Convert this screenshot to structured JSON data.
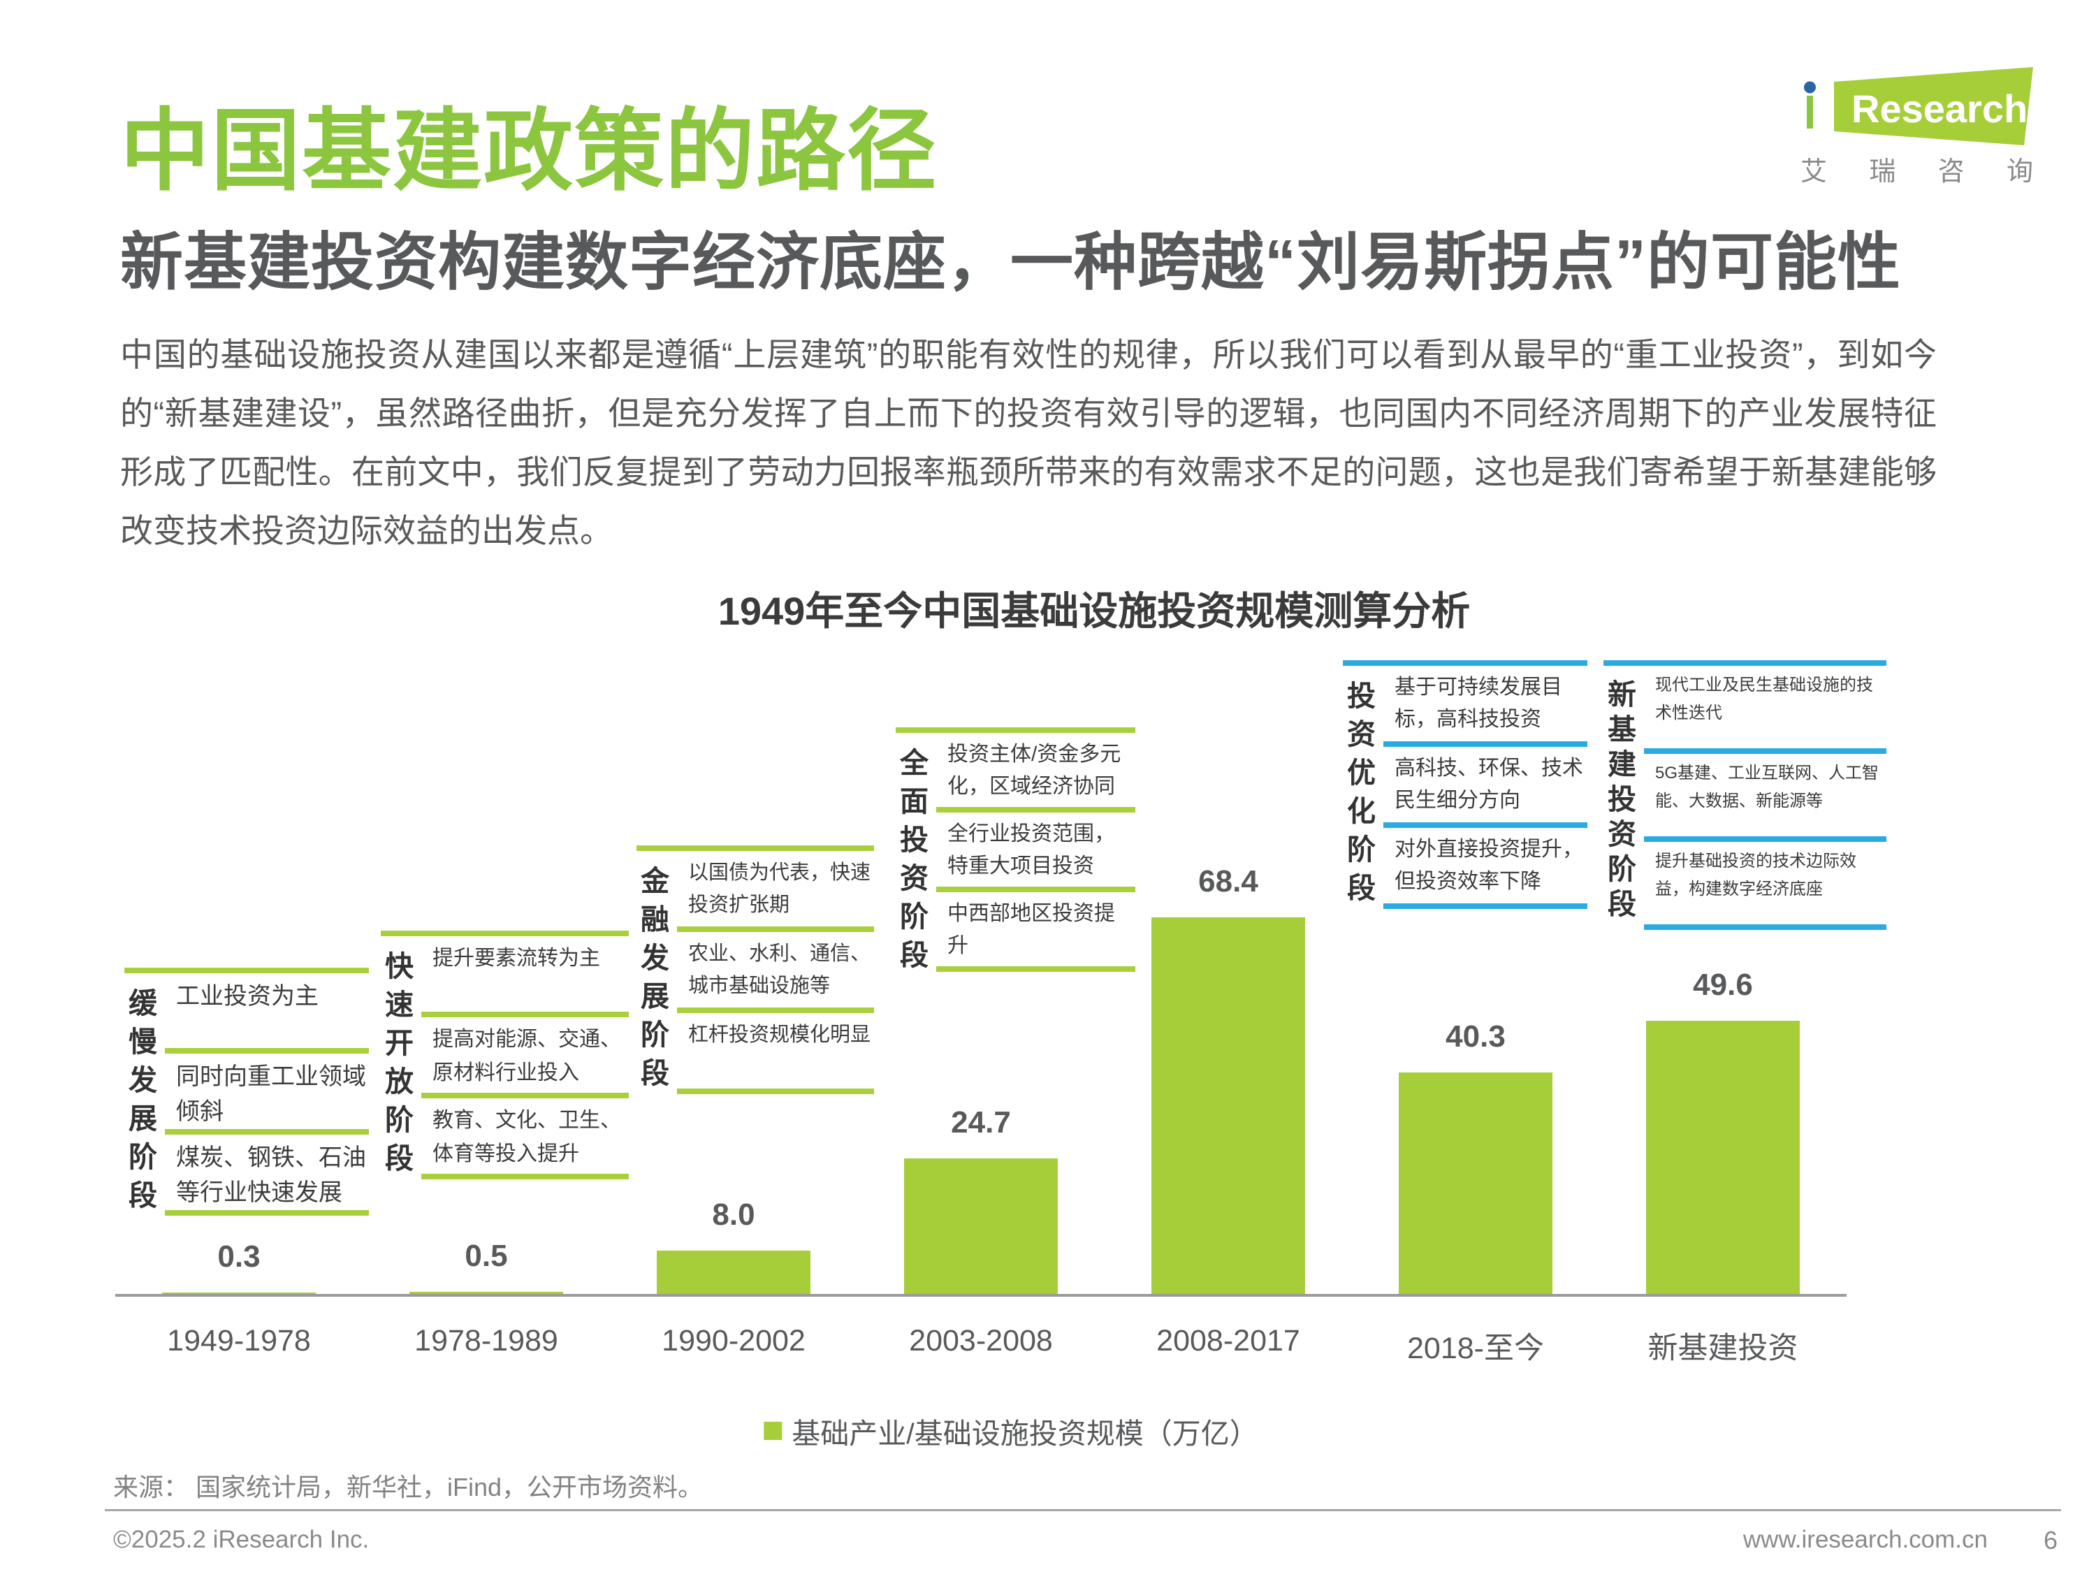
{
  "header": {
    "title": "中国基建政策的路径",
    "subtitle": "新基建投资构建数字经济底座，一种跨越“刘易斯拐点”的可能性"
  },
  "logo": {
    "brand": "iResearch",
    "cn": [
      "艾",
      "瑞",
      "咨",
      "询"
    ]
  },
  "intro": "中国的基础设施投资从建国以来都是遵循“上层建筑”的职能有效性的规律，所以我们可以看到从最早的“重工业投资”，到如今的“新基建建设”，虽然路径曲折，但是充分发挥了自上而下的投资有效引导的逻辑，也同国内不同经济周期下的产业发展特征形成了匹配性。在前文中，我们反复提到了劳动力回报率瓶颈所带来的有效需求不足的问题，这也是我们寄希望于新基建能够改变技术投资边际效益的出发点。",
  "chart_data": {
    "type": "bar",
    "title": "1949年至今中国基础设施投资规模测算分析",
    "categories": [
      "1949-1978",
      "1978-1989",
      "1990-2002",
      "2003-2008",
      "2008-2017",
      "2018-至今",
      "新基建投资"
    ],
    "values": [
      0.3,
      0.5,
      8.0,
      24.7,
      68.4,
      40.3,
      49.6
    ],
    "ylim": [
      0,
      75
    ],
    "grid": false,
    "legend_position": "bottom",
    "legend": "基础产业/基础设施投资规模（万亿）",
    "bar_color": "#A6CE39",
    "line_green": "#A9CF3B",
    "line_blue": "#29ABE2",
    "stages": [
      {
        "label": "缓慢发展阶段",
        "color": "green",
        "items": [
          "工业投资为主",
          "同时向重工业领域倾斜",
          "煤炭、钢铁、石油等行业快速发展"
        ]
      },
      {
        "label": "快速开放阶段",
        "color": "green",
        "items": [
          "提升要素流转为主",
          "提高对能源、交通、原材料行业投入",
          "教育、文化、卫生、体育等投入提升"
        ]
      },
      {
        "label": "金融发展阶段",
        "color": "green",
        "items": [
          "以国债为代表，快速投资扩张期",
          "农业、水利、通信、城市基础设施等",
          "杠杆投资规模化明显"
        ]
      },
      {
        "label": "全面投资阶段",
        "color": "green",
        "items": [
          "投资主体/资金多元化，区域经济协同",
          "全行业投资范围，特重大项目投资",
          "中西部地区投资提升"
        ]
      },
      {
        "label": "投资优化阶段",
        "color": "blue",
        "items": [
          "基于可持续发展目标，高科技投资",
          "高科技、环保、技术民生细分方向",
          "对外直接投资提升，但投资效率下降"
        ]
      },
      {
        "label": "新基建投资阶段",
        "color": "blue",
        "items": [
          "现代工业及民生基础设施的技术性迭代",
          "5G基建、工业互联网、人工智能、大数据、新能源等",
          "提升基础投资的技术边际效益，构建数字经济底座"
        ]
      }
    ]
  },
  "source": "来源： 国家统计局，新华社，iFind，公开市场资料。",
  "footer": {
    "copyright": "©2025.2 iResearch Inc.",
    "website": "www.iresearch.com.cn",
    "page": "6"
  }
}
